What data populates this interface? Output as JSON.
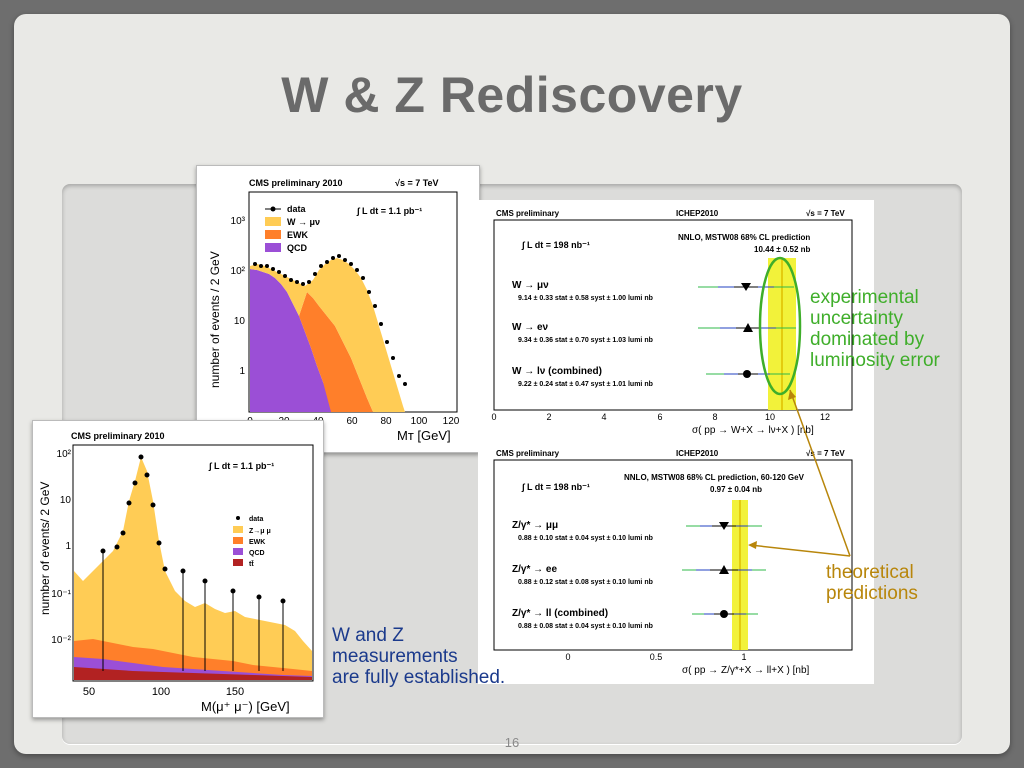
{
  "slide": {
    "title": "W & Z Rediscovery",
    "page_number": "16"
  },
  "plot_mt": {
    "header": "CMS preliminary 2010",
    "energy": "√s = 7 TeV",
    "lumi": "∫ L dt = 1.1 pb⁻¹",
    "ylabel": "number of events / 2 GeV",
    "xlabel": "Mᴛ [GeV]",
    "legend": [
      "data",
      "W → μν",
      "EWK",
      "QCD"
    ],
    "y_ticks": [
      "10³",
      "10²",
      "10",
      "1"
    ],
    "x_ticks": [
      "0",
      "20",
      "40",
      "60",
      "80",
      "100",
      "120"
    ],
    "colors": {
      "w": "#ffcc55",
      "ewk": "#ff7f2a",
      "qcd": "#9b4fd6"
    }
  },
  "plot_mass": {
    "header": "CMS preliminary 2010",
    "lumi": "∫ L dt = 1.1 pb⁻¹",
    "ylabel": "number of events/ 2 GeV",
    "xlabel": "M(μ⁺ μ⁻) [GeV]",
    "legend": [
      "data",
      "Z→μ μ",
      "EWK",
      "QCD",
      "tt̄"
    ],
    "y_ticks": [
      "10²",
      "10",
      "1",
      "10⁻¹",
      "10⁻²"
    ],
    "x_ticks": [
      "50",
      "100",
      "150"
    ]
  },
  "plot_w": {
    "header_left": "CMS preliminary",
    "header_mid": "ICHEP2010",
    "energy": "√s = 7 TeV",
    "lumi": "∫ L dt = 198 nb⁻¹",
    "prediction_title": "NNLO, MSTW08 68% CL prediction",
    "prediction_value": "10.44 ± 0.52 nb",
    "xlabel": "σ( pp → W+X → lν+X )  [nb]",
    "x_ticks": [
      "0",
      "2",
      "4",
      "6",
      "8",
      "10",
      "12"
    ],
    "rows": [
      {
        "label": "W → μν",
        "value": "9.14 ± 0.33 stat ± 0.58 syst ± 1.00 lumi nb"
      },
      {
        "label": "W → eν",
        "value": "9.34 ± 0.36 stat ± 0.70 syst ± 1.03 lumi nb"
      },
      {
        "label": "W → lν (combined)",
        "value": "9.22 ± 0.24 stat ± 0.47 syst ± 1.01 lumi nb"
      }
    ]
  },
  "plot_z": {
    "header_left": "CMS preliminary",
    "header_mid": "ICHEP2010",
    "energy": "√s = 7 TeV",
    "lumi": "∫ L dt = 198 nb⁻¹",
    "prediction_title": "NNLO, MSTW08 68% CL prediction, 60-120 GeV",
    "prediction_value": "0.97 ± 0.04 nb",
    "xlabel": "σ( pp → Z/γ*+X → ll+X )  [nb]",
    "x_ticks": [
      "0",
      "0.5",
      "1"
    ],
    "rows": [
      {
        "label": "Z/γ* → μμ",
        "value": "0.88 ± 0.10 stat ± 0.04 syst ± 0.10 lumi nb"
      },
      {
        "label": "Z/γ* → ee",
        "value": "0.88 ± 0.12 stat ± 0.08 syst ± 0.10 lumi nb"
      },
      {
        "label": "Z/γ* → ll (combined)",
        "value": "0.88 ± 0.08 stat ± 0.04 syst ± 0.10 lumi nb"
      }
    ]
  },
  "annotations": {
    "experimental": [
      "experimental",
      "uncertainty",
      "dominated by",
      "luminosity error"
    ],
    "theoretical": [
      "theoretical",
      "predictions"
    ],
    "conclusion": [
      "W and Z",
      "measurements",
      "are fully established."
    ],
    "colors": {
      "experimental": "#3fae2a",
      "theoretical": "#b8860b",
      "conclusion": "#1b3a8c"
    }
  }
}
